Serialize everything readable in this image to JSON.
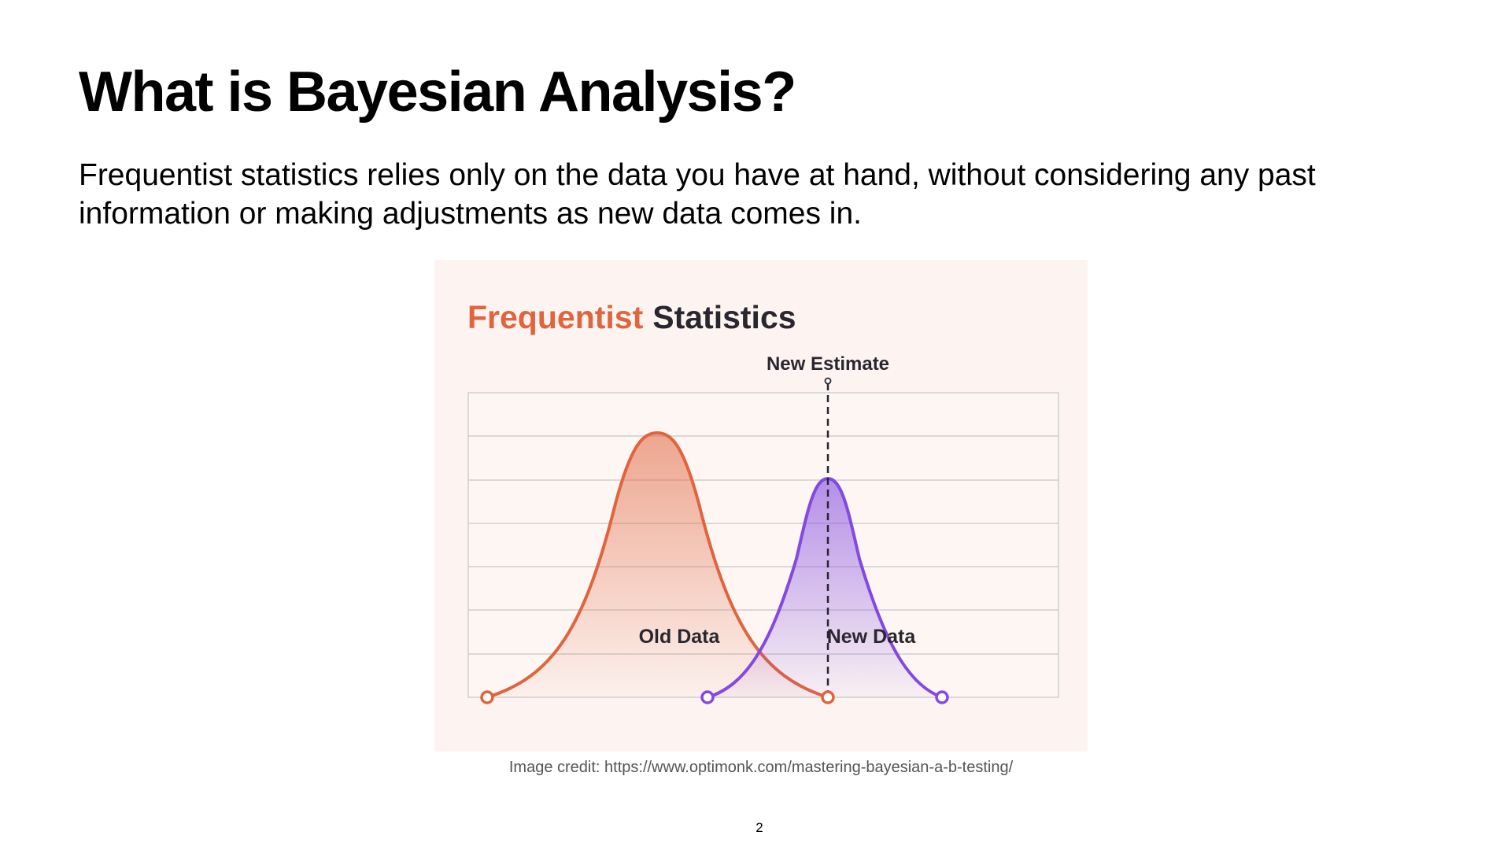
{
  "slide": {
    "title": "What is Bayesian Analysis?",
    "body": "Frequentist statistics relies only on the data you have at hand, without considering any past information or making adjustments as new data comes in.",
    "page_number": "2"
  },
  "figure": {
    "title_part1": "Frequentist",
    "title_part2": "Statistics",
    "estimate_label": "New Estimate",
    "old_label": "Old Data",
    "new_label": "New Data",
    "credit": "Image credit: https://www.optimonk.com/mastering-bayesian-a-b-testing/"
  },
  "colors": {
    "background": "#fdf4f1",
    "old_curve": "#e0643e",
    "new_curve": "#8349e0",
    "title_dark": "#2a2630",
    "grid": "#cfcfcf"
  }
}
